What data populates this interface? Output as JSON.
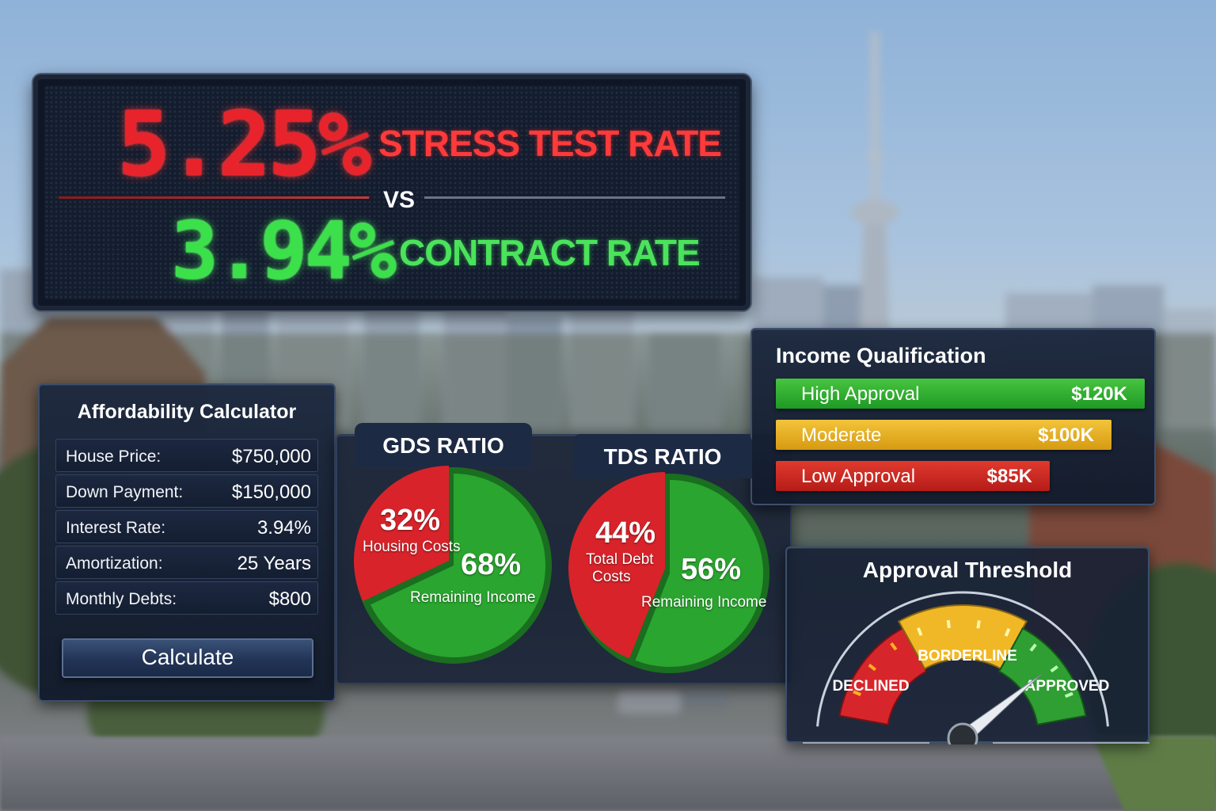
{
  "rate_board": {
    "stress_rate": "5.25%",
    "stress_label": "STRESS TEST RATE",
    "vs": "VS",
    "contract_rate": "3.94%",
    "contract_label": "CONTRACT RATE",
    "stress_color": "#e8232b",
    "contract_color": "#3be04a"
  },
  "calculator": {
    "title": "Affordability Calculator",
    "rows": [
      {
        "label": "House Price:",
        "value": "$750,000"
      },
      {
        "label": "Down Payment:",
        "value": "$150,000"
      },
      {
        "label": "Interest Rate:",
        "value": "3.94%"
      },
      {
        "label": "Amortization:",
        "value": "25 Years"
      },
      {
        "label": "Monthly Debts:",
        "value": "$800"
      }
    ],
    "button_label": "Calculate"
  },
  "gds": {
    "title": "GDS RATIO",
    "used_pct": "32%",
    "used_label": "Housing Costs",
    "remaining_pct": "68%",
    "remaining_label": "Remaining Income",
    "used_fraction": 0.32
  },
  "tds": {
    "title": "TDS RATIO",
    "used_pct": "44%",
    "used_label_line1": "Total Debt",
    "used_label_line2": "Costs",
    "remaining_pct": "56%",
    "remaining_label": "Remaining Income",
    "used_fraction": 0.44
  },
  "colors": {
    "pie_red": "#d8232a",
    "pie_green": "#2aa52f",
    "accent_panel": "#1c2840"
  },
  "income": {
    "title": "Income Qualification",
    "bars": [
      {
        "label": "High Approval",
        "value": "$120K"
      },
      {
        "label": "Moderate",
        "value": "$100K"
      },
      {
        "label": "Low Approval",
        "value": "$85K"
      }
    ]
  },
  "gauge": {
    "title": "Approval Threshold",
    "zones": [
      "DECLINED",
      "BORDERLINE",
      "APPROVED"
    ],
    "needle_fraction": 0.82
  }
}
